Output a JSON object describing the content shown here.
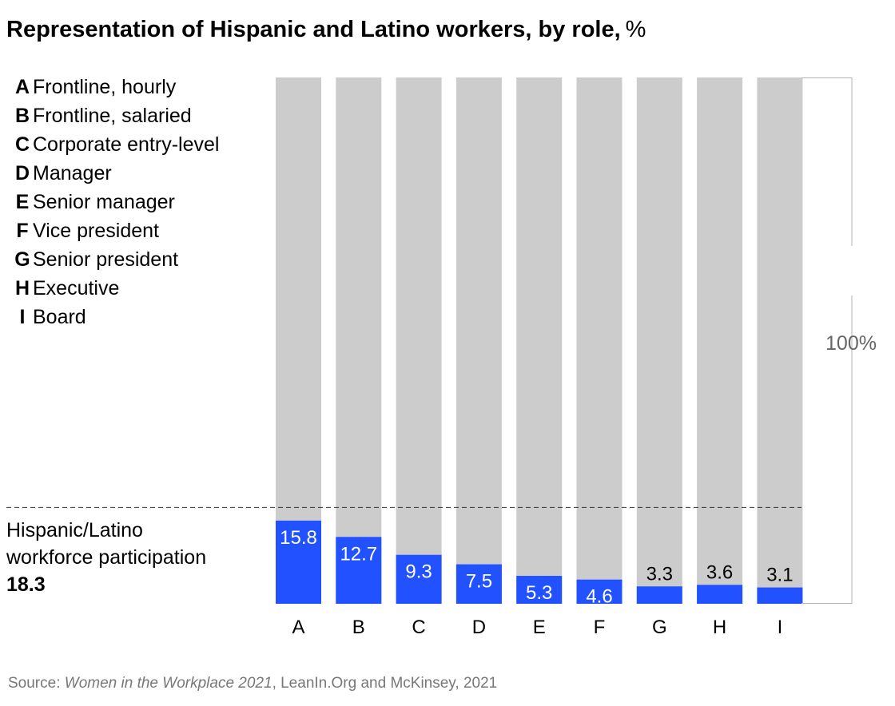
{
  "chart_data": {
    "type": "bar",
    "title": "Representation of Hispanic and Latino workers, by role,",
    "title_unit": "%",
    "categories": [
      "A",
      "B",
      "C",
      "D",
      "E",
      "F",
      "G",
      "H",
      "I"
    ],
    "legend": [
      {
        "key": "A",
        "label": "Frontline, hourly"
      },
      {
        "key": "B",
        "label": "Frontline, salaried"
      },
      {
        "key": "C",
        "label": "Corporate entry-level"
      },
      {
        "key": "D",
        "label": "Manager"
      },
      {
        "key": "E",
        "label": "Senior manager"
      },
      {
        "key": "F",
        "label": "Vice president"
      },
      {
        "key": "G",
        "label": "Senior president"
      },
      {
        "key": "H",
        "label": "Executive"
      },
      {
        "key": "I",
        "label": "Board"
      }
    ],
    "values": [
      15.8,
      12.7,
      9.3,
      7.5,
      5.3,
      4.6,
      3.3,
      3.6,
      3.1
    ],
    "value_labels": [
      "15.8",
      "12.7",
      "9.3",
      "7.5",
      "5.3",
      "4.6",
      "3.3",
      "3.6",
      "3.1"
    ],
    "ylim": [
      0,
      100
    ],
    "total_label": "100%",
    "reference_line": {
      "value": 18.3,
      "label_line1": "Hispanic/Latino",
      "label_line2": "workforce participation",
      "value_label": "18.3"
    },
    "colors": {
      "value": "#2251FF",
      "background": "#CCCCCC",
      "reference": "#333333",
      "bracket": "#B3B3B3"
    },
    "source": {
      "prefix": "Source: ",
      "title": "Women in the Workplace 2021",
      "suffix": ", LeanIn.Org and McKinsey, 2021"
    }
  }
}
